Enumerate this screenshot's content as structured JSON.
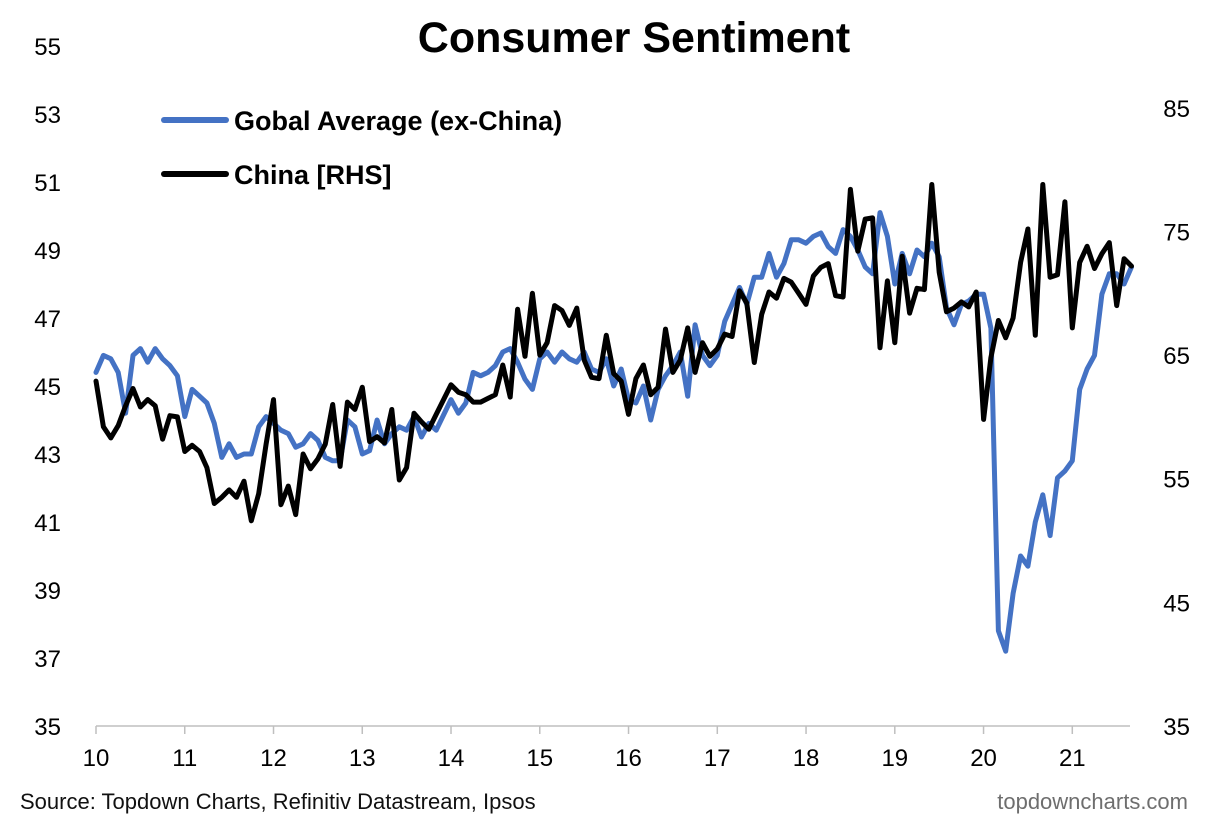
{
  "source": "Source: Topdown Charts, Refinitiv Datastream, Ipsos",
  "watermark": "topdowncharts.com",
  "chart_data": {
    "type": "line",
    "title": "Consumer Sentiment",
    "legend_position": "top-left",
    "grid": false,
    "x_ticks": [
      "10",
      "11",
      "12",
      "13",
      "14",
      "15",
      "16",
      "17",
      "18",
      "19",
      "20",
      "21"
    ],
    "x_range": [
      2010.0,
      2021.65
    ],
    "y_left": {
      "ticks": [
        35,
        37,
        39,
        41,
        43,
        45,
        47,
        49,
        51,
        53,
        55
      ],
      "range": [
        35,
        55
      ]
    },
    "y_right": {
      "ticks": [
        35,
        45,
        55,
        65,
        75,
        85
      ],
      "range": [
        35,
        90
      ]
    },
    "series": [
      {
        "name": "Gobal Average (ex-China)",
        "color": "#4472C4",
        "axis": "left",
        "points": [
          [
            2010.0,
            45.4
          ],
          [
            2010.083,
            45.9
          ],
          [
            2010.167,
            45.8
          ],
          [
            2010.25,
            45.4
          ],
          [
            2010.333,
            44.2
          ],
          [
            2010.417,
            45.9
          ],
          [
            2010.5,
            46.1
          ],
          [
            2010.583,
            45.7
          ],
          [
            2010.667,
            46.1
          ],
          [
            2010.75,
            45.8
          ],
          [
            2010.833,
            45.6
          ],
          [
            2010.917,
            45.3
          ],
          [
            2011.0,
            44.1
          ],
          [
            2011.083,
            44.9
          ],
          [
            2011.167,
            44.7
          ],
          [
            2011.25,
            44.5
          ],
          [
            2011.333,
            43.9
          ],
          [
            2011.417,
            42.9
          ],
          [
            2011.5,
            43.3
          ],
          [
            2011.583,
            42.9
          ],
          [
            2011.667,
            43.0
          ],
          [
            2011.75,
            43.0
          ],
          [
            2011.833,
            43.8
          ],
          [
            2011.917,
            44.1
          ],
          [
            2012.0,
            43.9
          ],
          [
            2012.083,
            43.7
          ],
          [
            2012.167,
            43.6
          ],
          [
            2012.25,
            43.2
          ],
          [
            2012.333,
            43.3
          ],
          [
            2012.417,
            43.6
          ],
          [
            2012.5,
            43.4
          ],
          [
            2012.583,
            42.9
          ],
          [
            2012.667,
            42.8
          ],
          [
            2012.75,
            42.8
          ],
          [
            2012.833,
            44.0
          ],
          [
            2012.917,
            43.8
          ],
          [
            2013.0,
            43.0
          ],
          [
            2013.083,
            43.1
          ],
          [
            2013.167,
            44.0
          ],
          [
            2013.25,
            43.3
          ],
          [
            2013.333,
            43.6
          ],
          [
            2013.417,
            43.8
          ],
          [
            2013.5,
            43.7
          ],
          [
            2013.583,
            44.1
          ],
          [
            2013.667,
            43.5
          ],
          [
            2013.75,
            43.9
          ],
          [
            2013.833,
            43.7
          ],
          [
            2014.0,
            44.6
          ],
          [
            2014.083,
            44.2
          ],
          [
            2014.167,
            44.5
          ],
          [
            2014.25,
            45.4
          ],
          [
            2014.333,
            45.3
          ],
          [
            2014.417,
            45.4
          ],
          [
            2014.5,
            45.6
          ],
          [
            2014.583,
            46.0
          ],
          [
            2014.667,
            46.1
          ],
          [
            2014.75,
            45.7
          ],
          [
            2014.833,
            45.2
          ],
          [
            2014.917,
            44.9
          ],
          [
            2015.0,
            45.8
          ],
          [
            2015.083,
            46.0
          ],
          [
            2015.167,
            45.7
          ],
          [
            2015.25,
            46.0
          ],
          [
            2015.333,
            45.8
          ],
          [
            2015.417,
            45.7
          ],
          [
            2015.5,
            46.0
          ],
          [
            2015.583,
            45.5
          ],
          [
            2015.667,
            45.4
          ],
          [
            2015.75,
            45.8
          ],
          [
            2015.833,
            45.0
          ],
          [
            2015.917,
            45.5
          ],
          [
            2016.0,
            44.6
          ],
          [
            2016.083,
            44.5
          ],
          [
            2016.167,
            45.0
          ],
          [
            2016.25,
            44.0
          ],
          [
            2016.333,
            44.9
          ],
          [
            2016.417,
            45.3
          ],
          [
            2016.5,
            45.6
          ],
          [
            2016.583,
            46.0
          ],
          [
            2016.667,
            44.7
          ],
          [
            2016.75,
            46.8
          ],
          [
            2016.833,
            45.9
          ],
          [
            2016.917,
            45.6
          ],
          [
            2017.0,
            45.9
          ],
          [
            2017.083,
            46.9
          ],
          [
            2017.167,
            47.4
          ],
          [
            2017.25,
            47.9
          ],
          [
            2017.333,
            47.4
          ],
          [
            2017.417,
            48.2
          ],
          [
            2017.5,
            48.2
          ],
          [
            2017.583,
            48.9
          ],
          [
            2017.667,
            48.2
          ],
          [
            2017.75,
            48.6
          ],
          [
            2017.833,
            49.3
          ],
          [
            2017.917,
            49.3
          ],
          [
            2018.0,
            49.2
          ],
          [
            2018.083,
            49.4
          ],
          [
            2018.167,
            49.5
          ],
          [
            2018.25,
            49.1
          ],
          [
            2018.333,
            48.9
          ],
          [
            2018.417,
            49.6
          ],
          [
            2018.5,
            49.4
          ],
          [
            2018.583,
            49.0
          ],
          [
            2018.667,
            48.5
          ],
          [
            2018.75,
            48.3
          ],
          [
            2018.833,
            50.1
          ],
          [
            2018.917,
            49.4
          ],
          [
            2019.0,
            48.0
          ],
          [
            2019.083,
            48.9
          ],
          [
            2019.167,
            48.3
          ],
          [
            2019.25,
            49.0
          ],
          [
            2019.333,
            48.8
          ],
          [
            2019.417,
            49.2
          ],
          [
            2019.5,
            48.8
          ],
          [
            2019.583,
            47.3
          ],
          [
            2019.667,
            46.8
          ],
          [
            2019.75,
            47.4
          ],
          [
            2019.833,
            47.5
          ],
          [
            2019.917,
            47.7
          ],
          [
            2020.0,
            47.7
          ],
          [
            2020.083,
            46.7
          ],
          [
            2020.167,
            37.8
          ],
          [
            2020.25,
            37.2
          ],
          [
            2020.333,
            38.9
          ],
          [
            2020.417,
            40.0
          ],
          [
            2020.5,
            39.7
          ],
          [
            2020.583,
            41.0
          ],
          [
            2020.667,
            41.8
          ],
          [
            2020.75,
            40.6
          ],
          [
            2020.833,
            42.3
          ],
          [
            2020.917,
            42.5
          ],
          [
            2021.0,
            42.8
          ],
          [
            2021.083,
            44.9
          ],
          [
            2021.167,
            45.5
          ],
          [
            2021.25,
            45.9
          ],
          [
            2021.333,
            47.7
          ],
          [
            2021.417,
            48.3
          ],
          [
            2021.5,
            48.3
          ],
          [
            2021.583,
            48.0
          ],
          [
            2021.667,
            48.5
          ]
        ]
      },
      {
        "name": "China [RHS]",
        "color": "#000000",
        "axis": "right",
        "points": [
          [
            2010.0,
            62.9
          ],
          [
            2010.083,
            59.2
          ],
          [
            2010.167,
            58.3
          ],
          [
            2010.25,
            59.3
          ],
          [
            2010.333,
            60.9
          ],
          [
            2010.417,
            62.3
          ],
          [
            2010.5,
            60.8
          ],
          [
            2010.583,
            61.4
          ],
          [
            2010.667,
            60.9
          ],
          [
            2010.75,
            58.2
          ],
          [
            2010.833,
            60.1
          ],
          [
            2010.917,
            60.0
          ],
          [
            2011.0,
            57.2
          ],
          [
            2011.083,
            57.7
          ],
          [
            2011.167,
            57.2
          ],
          [
            2011.25,
            55.9
          ],
          [
            2011.333,
            53.0
          ],
          [
            2011.417,
            53.5
          ],
          [
            2011.5,
            54.1
          ],
          [
            2011.583,
            53.5
          ],
          [
            2011.667,
            54.8
          ],
          [
            2011.75,
            51.6
          ],
          [
            2011.833,
            53.8
          ],
          [
            2011.917,
            57.8
          ],
          [
            2012.0,
            61.4
          ],
          [
            2012.083,
            52.9
          ],
          [
            2012.167,
            54.4
          ],
          [
            2012.25,
            52.1
          ],
          [
            2012.333,
            57.0
          ],
          [
            2012.417,
            55.8
          ],
          [
            2012.5,
            56.6
          ],
          [
            2012.583,
            57.8
          ],
          [
            2012.667,
            61.0
          ],
          [
            2012.75,
            56.0
          ],
          [
            2012.833,
            61.2
          ],
          [
            2012.917,
            60.6
          ],
          [
            2013.0,
            62.4
          ],
          [
            2013.083,
            58.0
          ],
          [
            2013.167,
            58.4
          ],
          [
            2013.25,
            57.9
          ],
          [
            2013.333,
            60.6
          ],
          [
            2013.417,
            54.9
          ],
          [
            2013.5,
            55.9
          ],
          [
            2013.583,
            60.3
          ],
          [
            2013.667,
            59.6
          ],
          [
            2013.75,
            59.0
          ],
          [
            2013.833,
            60.2
          ],
          [
            2014.0,
            62.6
          ],
          [
            2014.083,
            62.0
          ],
          [
            2014.167,
            61.8
          ],
          [
            2014.25,
            61.2
          ],
          [
            2014.333,
            61.2
          ],
          [
            2014.417,
            61.5
          ],
          [
            2014.5,
            61.8
          ],
          [
            2014.583,
            64.2
          ],
          [
            2014.667,
            61.6
          ],
          [
            2014.75,
            68.7
          ],
          [
            2014.833,
            64.9
          ],
          [
            2014.917,
            70.0
          ],
          [
            2015.0,
            65.0
          ],
          [
            2015.083,
            66.0
          ],
          [
            2015.167,
            69.0
          ],
          [
            2015.25,
            68.6
          ],
          [
            2015.333,
            67.4
          ],
          [
            2015.417,
            68.8
          ],
          [
            2015.5,
            64.6
          ],
          [
            2015.583,
            63.2
          ],
          [
            2015.667,
            63.1
          ],
          [
            2015.75,
            66.6
          ],
          [
            2015.833,
            63.5
          ],
          [
            2015.917,
            62.9
          ],
          [
            2016.0,
            60.2
          ],
          [
            2016.083,
            63.1
          ],
          [
            2016.167,
            64.2
          ],
          [
            2016.25,
            61.8
          ],
          [
            2016.333,
            62.4
          ],
          [
            2016.417,
            67.1
          ],
          [
            2016.5,
            63.6
          ],
          [
            2016.583,
            64.6
          ],
          [
            2016.667,
            67.2
          ],
          [
            2016.75,
            63.6
          ],
          [
            2016.833,
            66.0
          ],
          [
            2016.917,
            64.9
          ],
          [
            2017.0,
            65.5
          ],
          [
            2017.083,
            66.7
          ],
          [
            2017.167,
            66.5
          ],
          [
            2017.25,
            70.2
          ],
          [
            2017.333,
            69.2
          ],
          [
            2017.417,
            64.4
          ],
          [
            2017.5,
            68.3
          ],
          [
            2017.583,
            70.1
          ],
          [
            2017.667,
            69.6
          ],
          [
            2017.75,
            71.2
          ],
          [
            2017.833,
            70.9
          ],
          [
            2017.917,
            70.0
          ],
          [
            2018.0,
            69.1
          ],
          [
            2018.083,
            71.4
          ],
          [
            2018.167,
            72.1
          ],
          [
            2018.25,
            72.4
          ],
          [
            2018.333,
            69.8
          ],
          [
            2018.417,
            69.7
          ],
          [
            2018.5,
            78.4
          ],
          [
            2018.583,
            73.4
          ],
          [
            2018.667,
            76.0
          ],
          [
            2018.75,
            76.1
          ],
          [
            2018.833,
            65.6
          ],
          [
            2018.917,
            71.0
          ],
          [
            2019.0,
            66.0
          ],
          [
            2019.083,
            73.0
          ],
          [
            2019.167,
            68.4
          ],
          [
            2019.25,
            70.4
          ],
          [
            2019.333,
            70.3
          ],
          [
            2019.417,
            78.8
          ],
          [
            2019.5,
            71.7
          ],
          [
            2019.583,
            68.5
          ],
          [
            2019.667,
            68.8
          ],
          [
            2019.75,
            69.3
          ],
          [
            2019.833,
            68.9
          ],
          [
            2019.917,
            70.1
          ],
          [
            2020.0,
            59.8
          ],
          [
            2020.083,
            64.8
          ],
          [
            2020.167,
            67.8
          ],
          [
            2020.25,
            66.4
          ],
          [
            2020.333,
            68.0
          ],
          [
            2020.417,
            72.5
          ],
          [
            2020.5,
            75.2
          ],
          [
            2020.583,
            66.6
          ],
          [
            2020.667,
            78.8
          ],
          [
            2020.75,
            71.3
          ],
          [
            2020.833,
            71.5
          ],
          [
            2020.917,
            77.4
          ],
          [
            2021.0,
            67.2
          ],
          [
            2021.083,
            72.5
          ],
          [
            2021.167,
            73.8
          ],
          [
            2021.25,
            72.0
          ],
          [
            2021.333,
            73.2
          ],
          [
            2021.417,
            74.1
          ],
          [
            2021.5,
            69.0
          ],
          [
            2021.583,
            72.8
          ],
          [
            2021.667,
            72.2
          ]
        ]
      }
    ]
  }
}
